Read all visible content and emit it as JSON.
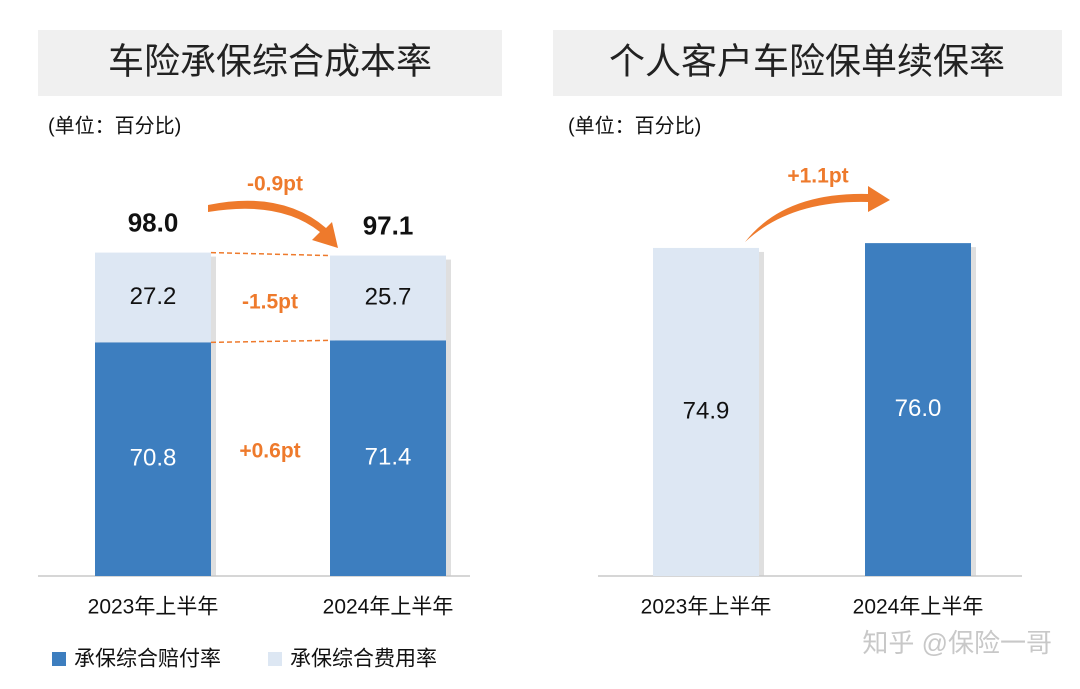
{
  "chart_data": [
    {
      "type": "stacked_bar",
      "title": "车险承保综合成本率",
      "subtitle": "(单位：百分比)",
      "categories": [
        "2023年上半年",
        "2024年上半年"
      ],
      "series": [
        {
          "name": "承保综合赔付率",
          "color": "#3d7ebf",
          "values": [
            70.8,
            71.4
          ]
        },
        {
          "name": "承保综合费用率",
          "color": "#dde7f3",
          "values": [
            27.2,
            25.7
          ]
        }
      ],
      "totals": {
        "values": [
          98.0,
          97.1
        ],
        "value_labels": [
          "98.0",
          "97.1"
        ]
      },
      "annotations": [
        "-0.9pt",
        "-1.5pt",
        "+0.6pt"
      ],
      "legend": "bottom-left"
    },
    {
      "type": "bar",
      "title": "个人客户车险保单续保率",
      "subtitle": "(单位：百分比)",
      "categories": [
        "2023年上半年",
        "2024年上半年"
      ],
      "values": [
        74.9,
        76.0
      ],
      "value_labels": [
        "74.9",
        "76.0"
      ],
      "colors": [
        "#dde7f3",
        "#3d7ebf"
      ],
      "annotations": [
        "+1.1pt"
      ],
      "watermark": "知乎 @保险一哥"
    }
  ]
}
